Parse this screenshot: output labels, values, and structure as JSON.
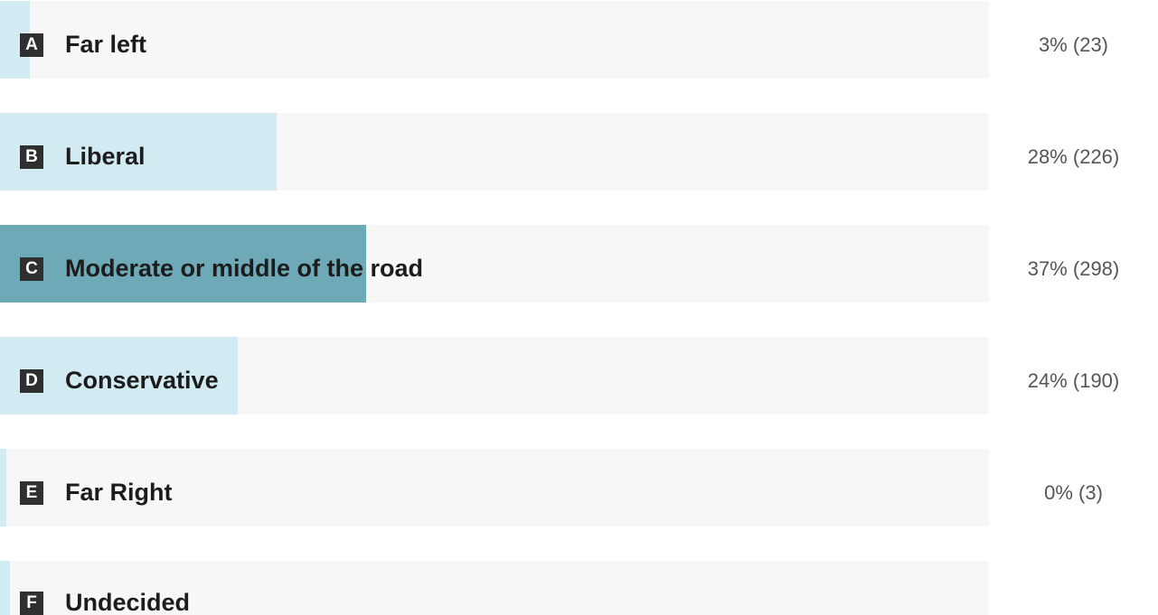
{
  "poll": {
    "options": [
      {
        "letter": "A",
        "label": "Far left",
        "result": "3% (23)",
        "percent": 3,
        "votes": 23
      },
      {
        "letter": "B",
        "label": "Liberal",
        "result": "28% (226)",
        "percent": 28,
        "votes": 226
      },
      {
        "letter": "C",
        "label": "Moderate or middle of the road",
        "result": "37% (298)",
        "percent": 37,
        "votes": 298,
        "leading": true
      },
      {
        "letter": "D",
        "label": "Conservative",
        "result": "24% (190)",
        "percent": 24,
        "votes": 190
      },
      {
        "letter": "E",
        "label": "Far Right",
        "result": "0% (3)",
        "percent": 0,
        "votes": 3
      },
      {
        "letter": "F",
        "label": "Undecided",
        "result": "",
        "percent": 1
      }
    ]
  },
  "colors": {
    "track": "#f7f7f7",
    "fill": "#d2ebf2",
    "leading_fill": "#6ea9b7",
    "letter_badge": "#2f2f2f"
  }
}
